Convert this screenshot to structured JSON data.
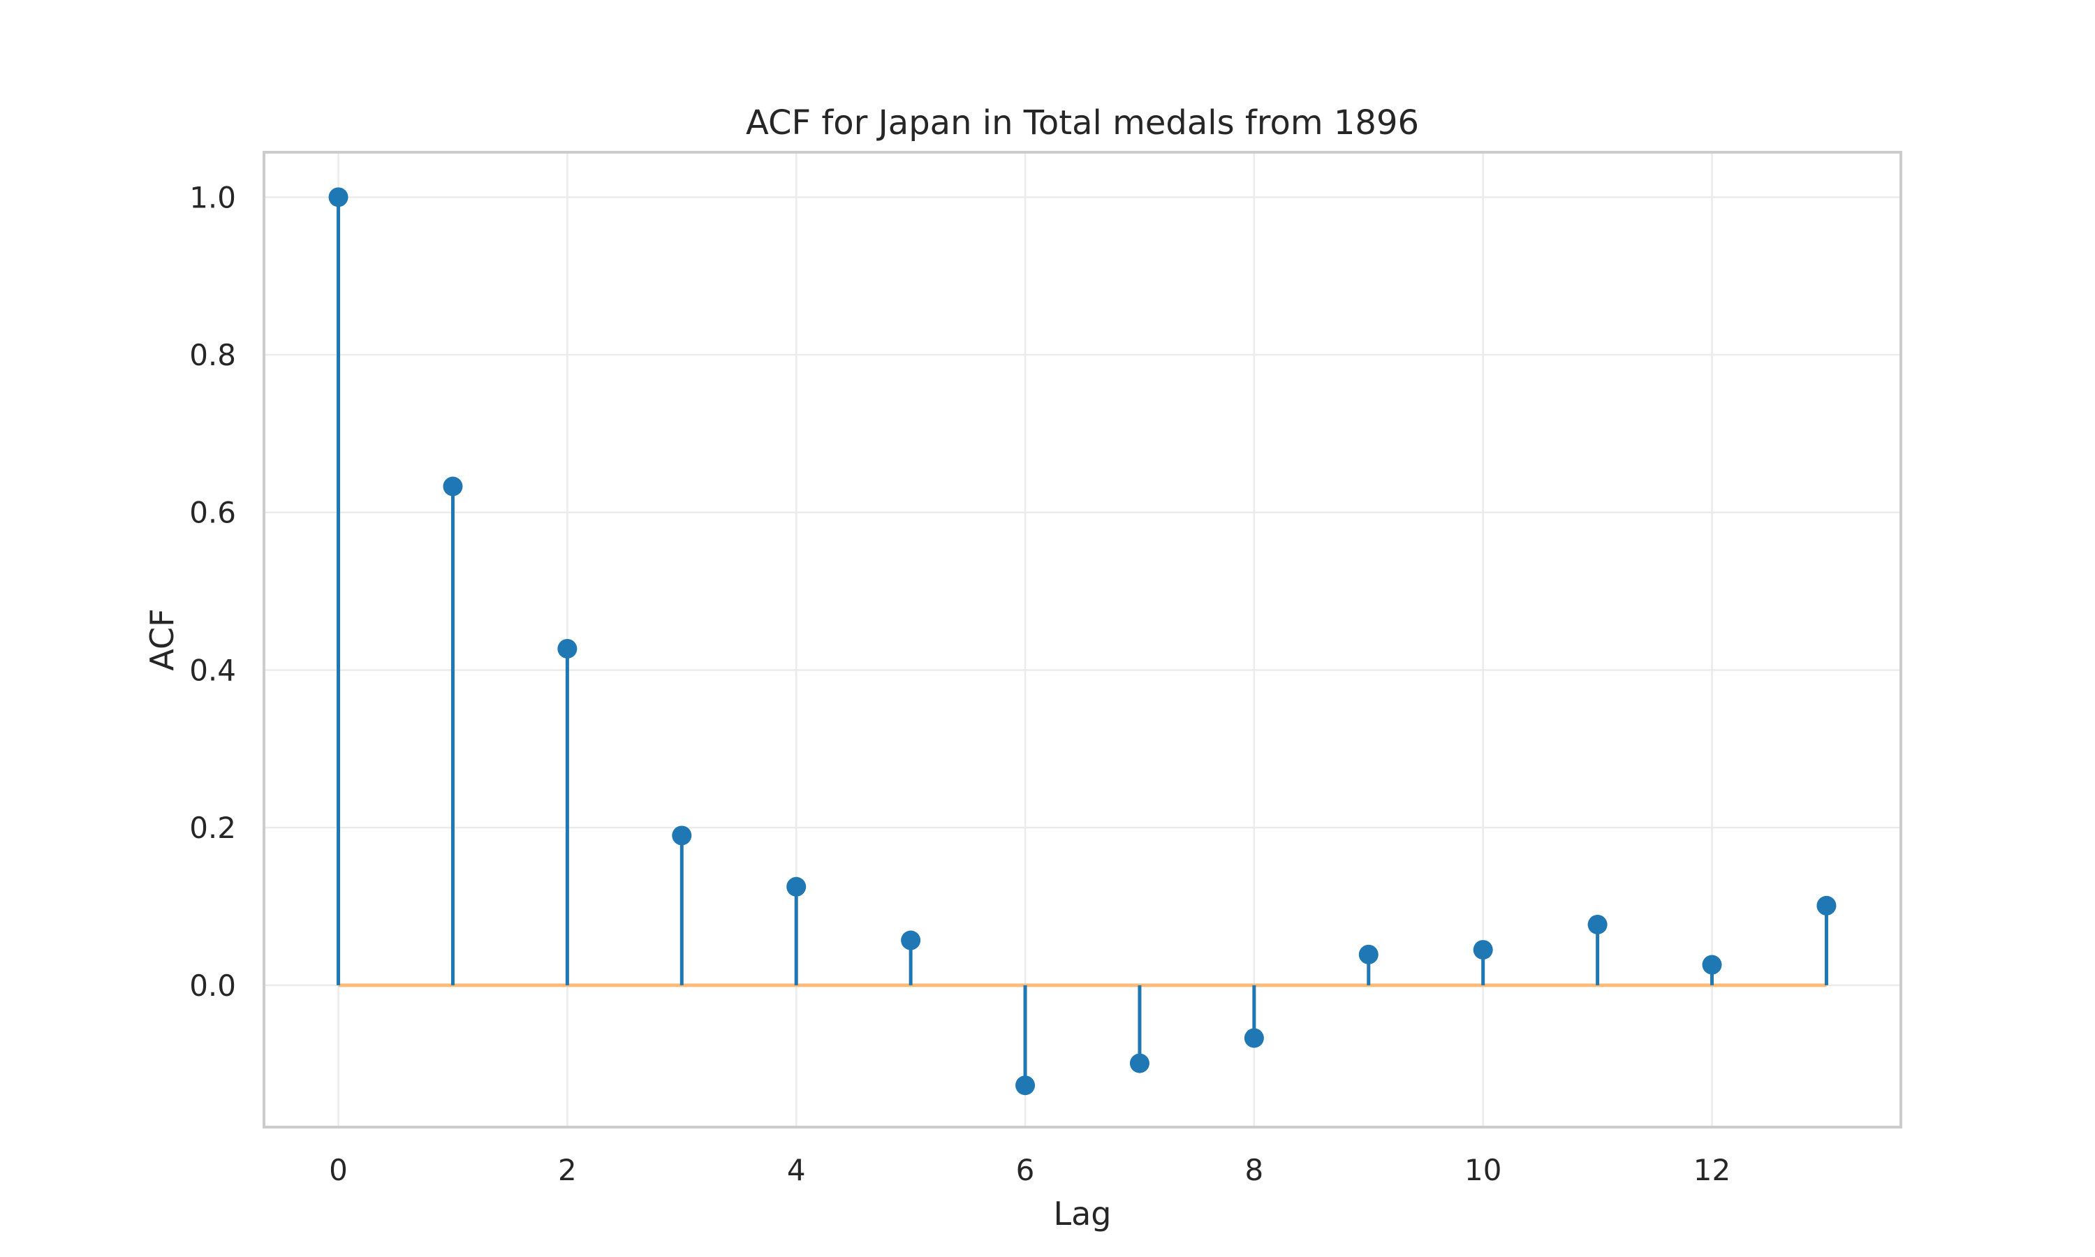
{
  "chart_data": {
    "type": "stem",
    "title": "ACF for Japan in Total medals from 1896",
    "xlabel": "Lag",
    "ylabel": "ACF",
    "x": [
      0,
      1,
      2,
      3,
      4,
      5,
      6,
      7,
      8,
      9,
      10,
      11,
      12,
      13
    ],
    "values": [
      1.0,
      0.633,
      0.427,
      0.19,
      0.125,
      0.057,
      -0.127,
      -0.099,
      -0.067,
      0.039,
      0.045,
      0.077,
      0.026,
      0.101
    ],
    "xlim": [
      -0.65,
      13.65
    ],
    "ylim": [
      -0.18,
      1.057
    ],
    "xticks": [
      0,
      2,
      4,
      6,
      8,
      10,
      12
    ],
    "xtick_labels": [
      "0",
      "2",
      "4",
      "6",
      "8",
      "10",
      "12"
    ],
    "yticks": [
      0.0,
      0.2,
      0.4,
      0.6,
      0.8,
      1.0
    ],
    "ytick_labels": [
      "0.0",
      "0.2",
      "0.4",
      "0.6",
      "0.8",
      "1.0"
    ],
    "grid": true,
    "colors": {
      "stem": "#1f77b4",
      "baseline": "#ffbb78",
      "grid": "#ebebeb",
      "frame": "#cccccc",
      "text": "#262626"
    }
  }
}
